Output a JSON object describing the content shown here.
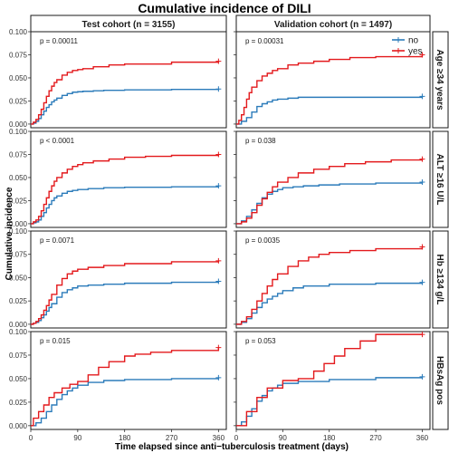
{
  "chart_data": {
    "type": "line",
    "title": "Cumulative incidence of DILI",
    "xlabel": "Time elapsed since anti−tuberculosis treatment (days)",
    "ylabel": "Cumulative incidence",
    "xlim": [
      0,
      375
    ],
    "ylim": [
      -0.004,
      0.1
    ],
    "x_ticks": [
      0,
      90,
      180,
      270,
      360
    ],
    "x_tick_labels": [
      "0",
      "90",
      "180",
      "270",
      "360"
    ],
    "y_ticks": [
      0,
      0.025,
      0.05,
      0.075,
      0.1
    ],
    "y_tick_labels": [
      "0.000",
      "0.025",
      "0.050",
      "0.075",
      "0.100"
    ],
    "columns": [
      "Test cohort (n = 3155)",
      "Validation cohort (n = 1497)"
    ],
    "rows": [
      "Age ≥34 years",
      "ALT ≥16 U/L",
      "Hb ≥134 g/L",
      "HBsAg pos"
    ],
    "legend": {
      "position": "top-right",
      "entries": [
        {
          "label": "no",
          "color": "#2b7bba"
        },
        {
          "label": "yes",
          "color": "#e3191c"
        }
      ]
    },
    "panels": [
      {
        "row": 0,
        "col": 0,
        "p_value": "p = 0.00011",
        "series": [
          {
            "group": "no",
            "color": "#2b7bba",
            "x": [
              0,
              5,
              10,
              15,
              20,
              25,
              30,
              35,
              40,
              45,
              50,
              60,
              70,
              80,
              90,
              100,
              120,
              140,
              180,
              270,
              360
            ],
            "y": [
              0,
              0.001,
              0.003,
              0.006,
              0.01,
              0.014,
              0.018,
              0.021,
              0.024,
              0.026,
              0.028,
              0.031,
              0.033,
              0.0345,
              0.035,
              0.0355,
              0.036,
              0.0365,
              0.037,
              0.0375,
              0.038
            ]
          },
          {
            "group": "yes",
            "color": "#e3191c",
            "x": [
              0,
              5,
              10,
              15,
              20,
              25,
              30,
              35,
              40,
              45,
              50,
              60,
              70,
              80,
              90,
              100,
              120,
              150,
              180,
              270,
              360
            ],
            "y": [
              0,
              0.002,
              0.005,
              0.01,
              0.016,
              0.023,
              0.03,
              0.036,
              0.041,
              0.045,
              0.048,
              0.053,
              0.056,
              0.058,
              0.059,
              0.06,
              0.062,
              0.064,
              0.065,
              0.067,
              0.068
            ]
          }
        ]
      },
      {
        "row": 0,
        "col": 1,
        "p_value": "p = 0.00031",
        "series": [
          {
            "group": "no",
            "color": "#2b7bba",
            "x": [
              0,
              10,
              20,
              30,
              40,
              50,
              60,
              70,
              80,
              100,
              120,
              360
            ],
            "y": [
              0,
              0.003,
              0.007,
              0.013,
              0.019,
              0.022,
              0.024,
              0.026,
              0.027,
              0.028,
              0.029,
              0.03
            ]
          },
          {
            "group": "yes",
            "color": "#e3191c",
            "x": [
              0,
              5,
              10,
              15,
              20,
              25,
              30,
              40,
              50,
              60,
              70,
              80,
              100,
              120,
              150,
              180,
              220,
              270,
              360
            ],
            "y": [
              0,
              0.004,
              0.01,
              0.018,
              0.027,
              0.034,
              0.04,
              0.047,
              0.052,
              0.055,
              0.058,
              0.06,
              0.064,
              0.066,
              0.068,
              0.07,
              0.072,
              0.073,
              0.075
            ]
          }
        ]
      },
      {
        "row": 1,
        "col": 0,
        "p_value": "p < 0.0001",
        "series": [
          {
            "group": "no",
            "color": "#2b7bba",
            "x": [
              0,
              5,
              10,
              15,
              20,
              25,
              30,
              35,
              40,
              45,
              50,
              60,
              70,
              80,
              90,
              110,
              140,
              180,
              270,
              360
            ],
            "y": [
              0,
              0.001,
              0.002,
              0.004,
              0.008,
              0.012,
              0.017,
              0.021,
              0.025,
              0.028,
              0.03,
              0.033,
              0.035,
              0.036,
              0.037,
              0.038,
              0.039,
              0.0395,
              0.04,
              0.041
            ]
          },
          {
            "group": "yes",
            "color": "#e3191c",
            "x": [
              0,
              5,
              10,
              15,
              20,
              25,
              30,
              35,
              40,
              45,
              50,
              60,
              70,
              80,
              90,
              100,
              120,
              150,
              180,
              220,
              270,
              360
            ],
            "y": [
              0,
              0.002,
              0.004,
              0.008,
              0.014,
              0.021,
              0.028,
              0.035,
              0.041,
              0.046,
              0.05,
              0.055,
              0.059,
              0.062,
              0.064,
              0.066,
              0.068,
              0.07,
              0.072,
              0.073,
              0.074,
              0.075
            ]
          }
        ]
      },
      {
        "row": 1,
        "col": 1,
        "p_value": "p = 0.038",
        "series": [
          {
            "group": "no",
            "color": "#2b7bba",
            "x": [
              0,
              10,
              20,
              30,
              40,
              50,
              60,
              70,
              80,
              90,
              110,
              130,
              160,
              200,
              270,
              360
            ],
            "y": [
              0,
              0.003,
              0.008,
              0.015,
              0.022,
              0.028,
              0.032,
              0.035,
              0.037,
              0.039,
              0.04,
              0.041,
              0.042,
              0.043,
              0.044,
              0.045
            ]
          },
          {
            "group": "yes",
            "color": "#e3191c",
            "x": [
              0,
              10,
              20,
              30,
              40,
              50,
              60,
              70,
              80,
              100,
              120,
              150,
              180,
              210,
              250,
              300,
              360
            ],
            "y": [
              0,
              0.002,
              0.006,
              0.012,
              0.02,
              0.027,
              0.034,
              0.04,
              0.045,
              0.05,
              0.055,
              0.059,
              0.062,
              0.065,
              0.067,
              0.069,
              0.07
            ]
          }
        ]
      },
      {
        "row": 2,
        "col": 0,
        "p_value": "p = 0.0071",
        "series": [
          {
            "group": "no",
            "color": "#2b7bba",
            "x": [
              0,
              5,
              10,
              15,
              20,
              25,
              30,
              35,
              40,
              50,
              60,
              70,
              80,
              90,
              110,
              140,
              180,
              270,
              360
            ],
            "y": [
              0,
              0.001,
              0.002,
              0.004,
              0.007,
              0.01,
              0.014,
              0.018,
              0.022,
              0.029,
              0.034,
              0.037,
              0.039,
              0.041,
              0.042,
              0.043,
              0.044,
              0.045,
              0.046
            ]
          },
          {
            "group": "yes",
            "color": "#e3191c",
            "x": [
              0,
              5,
              10,
              15,
              20,
              25,
              30,
              35,
              40,
              50,
              60,
              70,
              80,
              90,
              110,
              140,
              180,
              270,
              360
            ],
            "y": [
              0,
              0.001,
              0.003,
              0.006,
              0.01,
              0.015,
              0.02,
              0.026,
              0.032,
              0.042,
              0.049,
              0.054,
              0.057,
              0.059,
              0.061,
              0.063,
              0.065,
              0.067,
              0.068
            ]
          }
        ]
      },
      {
        "row": 2,
        "col": 1,
        "p_value": "p = 0.0035",
        "series": [
          {
            "group": "no",
            "color": "#2b7bba",
            "x": [
              0,
              10,
              20,
              30,
              40,
              50,
              60,
              70,
              80,
              90,
              110,
              130,
              180,
              270,
              360
            ],
            "y": [
              0,
              0.002,
              0.006,
              0.012,
              0.018,
              0.023,
              0.027,
              0.03,
              0.033,
              0.036,
              0.039,
              0.041,
              0.043,
              0.044,
              0.045
            ]
          },
          {
            "group": "yes",
            "color": "#e3191c",
            "x": [
              0,
              10,
              20,
              30,
              40,
              50,
              60,
              70,
              80,
              100,
              120,
              140,
              160,
              180,
              220,
              270,
              360
            ],
            "y": [
              0,
              0.003,
              0.008,
              0.016,
              0.025,
              0.033,
              0.041,
              0.048,
              0.054,
              0.062,
              0.068,
              0.072,
              0.075,
              0.077,
              0.079,
              0.081,
              0.083
            ]
          }
        ]
      },
      {
        "row": 3,
        "col": 0,
        "p_value": "p = 0.015",
        "series": [
          {
            "group": "no",
            "color": "#2b7bba",
            "x": [
              0,
              10,
              20,
              30,
              40,
              50,
              60,
              70,
              80,
              90,
              110,
              140,
              180,
              270,
              360
            ],
            "y": [
              0,
              0.003,
              0.008,
              0.015,
              0.022,
              0.028,
              0.033,
              0.037,
              0.04,
              0.043,
              0.046,
              0.048,
              0.049,
              0.05,
              0.051
            ]
          },
          {
            "group": "yes",
            "color": "#e3191c",
            "x": [
              0,
              5,
              15,
              25,
              35,
              45,
              60,
              75,
              90,
              110,
              130,
              150,
              180,
              200,
              230,
              270,
              360
            ],
            "y": [
              0,
              0.008,
              0.015,
              0.022,
              0.03,
              0.035,
              0.04,
              0.044,
              0.047,
              0.054,
              0.062,
              0.068,
              0.074,
              0.076,
              0.078,
              0.08,
              0.083
            ]
          }
        ]
      },
      {
        "row": 3,
        "col": 1,
        "p_value": "p = 0.053",
        "series": [
          {
            "group": "no",
            "color": "#2b7bba",
            "x": [
              0,
              10,
              20,
              30,
              40,
              50,
              60,
              70,
              80,
              90,
              120,
              180,
              270,
              360
            ],
            "y": [
              0,
              0.004,
              0.01,
              0.018,
              0.026,
              0.032,
              0.037,
              0.04,
              0.043,
              0.045,
              0.047,
              0.049,
              0.051,
              0.052
            ]
          },
          {
            "group": "yes",
            "color": "#e3191c",
            "x": [
              0,
              20,
              40,
              60,
              90,
              120,
              150,
              170,
              190,
              210,
              240,
              270,
              360
            ],
            "y": [
              0,
              0.015,
              0.03,
              0.04,
              0.048,
              0.05,
              0.058,
              0.066,
              0.074,
              0.082,
              0.09,
              0.097,
              0.097
            ]
          }
        ]
      }
    ]
  }
}
